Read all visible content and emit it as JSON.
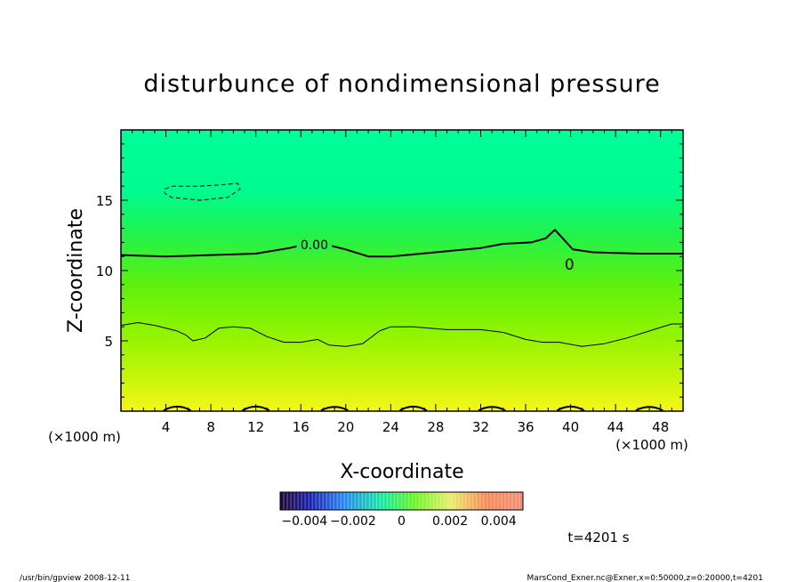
{
  "chart_data": {
    "type": "heatmap",
    "title": "disturbunce of nondimensional pressure",
    "xlabel": "X-coordinate",
    "ylabel": "Z-coordinate",
    "x_unit_left": "(×1000 m)",
    "x_unit_right": "(×1000 m)",
    "xlim": [
      0,
      50
    ],
    "ylim": [
      0,
      20
    ],
    "x_ticks": [
      4,
      8,
      12,
      16,
      20,
      24,
      28,
      32,
      36,
      40,
      44,
      48
    ],
    "x_tick_labels": [
      "4",
      "8",
      "12",
      "16",
      "20",
      "24",
      "28",
      "32",
      "36",
      "40",
      "44",
      "48"
    ],
    "y_ticks": [
      5,
      10,
      15
    ],
    "y_tick_labels": [
      "5",
      "10",
      "15"
    ],
    "colorbar": {
      "range": [
        -0.005,
        0.005
      ],
      "tick_values": [
        -0.004,
        -0.002,
        0,
        0.002,
        0.004
      ],
      "tick_labels": [
        "−0.004",
        "−0.002",
        "0",
        "0.002",
        "0.004"
      ]
    },
    "contours": [
      {
        "name": "zero-contour",
        "level": 0.0,
        "label": "0.00",
        "style": "solid-thick",
        "points": [
          [
            0,
            11.1
          ],
          [
            4,
            11.0
          ],
          [
            8,
            11.1
          ],
          [
            12,
            11.2
          ],
          [
            15,
            11.6
          ],
          [
            16.6,
            11.9
          ],
          [
            18.5,
            11.8
          ],
          [
            20,
            11.5
          ],
          [
            22,
            11.0
          ],
          [
            24,
            11.0
          ],
          [
            28,
            11.3
          ],
          [
            32,
            11.6
          ],
          [
            34,
            11.9
          ],
          [
            36.5,
            12.0
          ],
          [
            37.8,
            12.3
          ],
          [
            38.6,
            12.9
          ],
          [
            39.4,
            12.2
          ],
          [
            40.2,
            11.5
          ],
          [
            42,
            11.3
          ],
          [
            46,
            11.2
          ],
          [
            50,
            11.2
          ]
        ]
      },
      {
        "name": "lower-contour",
        "level": 0.002,
        "style": "solid-thin",
        "points": [
          [
            0,
            6.1
          ],
          [
            1.5,
            6.3
          ],
          [
            3,
            6.1
          ],
          [
            5,
            5.7
          ],
          [
            5.8,
            5.4
          ],
          [
            6.4,
            5.0
          ],
          [
            7.5,
            5.2
          ],
          [
            8.7,
            5.9
          ],
          [
            10,
            6.0
          ],
          [
            11.5,
            5.9
          ],
          [
            13,
            5.3
          ],
          [
            14.5,
            4.9
          ],
          [
            16,
            4.9
          ],
          [
            17.5,
            5.1
          ],
          [
            18.5,
            4.7
          ],
          [
            20,
            4.6
          ],
          [
            21.5,
            4.8
          ],
          [
            23,
            5.7
          ],
          [
            24,
            6.0
          ],
          [
            26,
            6.0
          ],
          [
            29,
            5.8
          ],
          [
            32,
            5.8
          ],
          [
            34,
            5.6
          ],
          [
            36,
            5.1
          ],
          [
            37.5,
            4.9
          ],
          [
            39,
            4.9
          ],
          [
            41,
            4.6
          ],
          [
            43,
            4.8
          ],
          [
            45,
            5.2
          ],
          [
            47,
            5.7
          ],
          [
            49,
            6.2
          ],
          [
            50,
            6.2
          ]
        ]
      },
      {
        "name": "negative-contour",
        "level": -0.001,
        "style": "dashed",
        "closed": true,
        "points": [
          [
            3.9,
            15.8
          ],
          [
            4.6,
            16.0
          ],
          [
            7.0,
            16.0
          ],
          [
            9.0,
            16.1
          ],
          [
            10.4,
            16.2
          ],
          [
            10.6,
            15.8
          ],
          [
            9.5,
            15.2
          ],
          [
            7.0,
            15.0
          ],
          [
            4.5,
            15.2
          ],
          [
            3.9,
            15.5
          ],
          [
            3.9,
            15.8
          ]
        ]
      }
    ],
    "annotations": [
      {
        "text": "0",
        "x": 39.9,
        "y": 10.5
      }
    ]
  },
  "figure": {
    "time_label": "t=4201 s",
    "footer_left": "/usr/bin/gpview   2008-12-11",
    "footer_right": "MarsCond_Exner.nc@Exner,x=0:50000,z=0:20000,t=4201"
  },
  "colors": {
    "field_top": "#00ff9a",
    "field_mid": "#3cf23a",
    "field_low": "#9ef700",
    "field_bottom": "#f5f516",
    "axis": "#000000"
  }
}
